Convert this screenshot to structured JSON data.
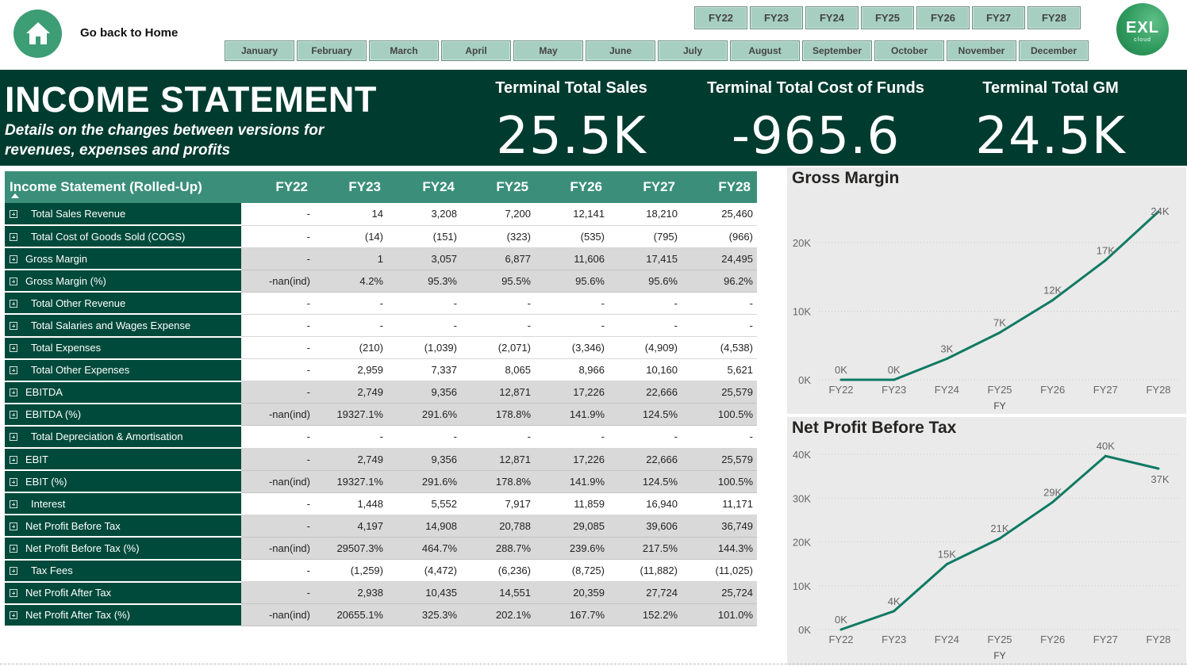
{
  "nav": {
    "home_label": "Go back to Home",
    "fiscal_years": [
      "FY22",
      "FY23",
      "FY24",
      "FY25",
      "FY26",
      "FY27",
      "FY28"
    ],
    "months": [
      "January",
      "February",
      "March",
      "April",
      "May",
      "June",
      "July",
      "August",
      "September",
      "October",
      "November",
      "December"
    ],
    "logo": {
      "main": "EXL",
      "sub": "cloud"
    }
  },
  "header": {
    "title": "INCOME STATEMENT",
    "subtitle": "Details on the changes between versions for revenues, expenses and profits",
    "kpis": [
      {
        "label": "Terminal Total Sales",
        "value": "25.5K"
      },
      {
        "label": "Terminal Total Cost of Funds",
        "value": "-965.6"
      },
      {
        "label": "Terminal Total GM",
        "value": "24.5K"
      }
    ]
  },
  "table": {
    "header": "Income Statement (Rolled-Up)",
    "columns": [
      "FY22",
      "FY23",
      "FY24",
      "FY25",
      "FY26",
      "FY27",
      "FY28"
    ],
    "rows": [
      {
        "label": "Total Sales Revenue",
        "kind": "sub",
        "values": [
          "-",
          "14",
          "3,208",
          "7,200",
          "12,141",
          "18,210",
          "25,460"
        ]
      },
      {
        "label": "Total Cost of Goods Sold (COGS)",
        "kind": "sub",
        "values": [
          "-",
          "(14)",
          "(151)",
          "(323)",
          "(535)",
          "(795)",
          "(966)"
        ]
      },
      {
        "label": "Gross Margin",
        "kind": "total",
        "values": [
          "-",
          "1",
          "3,057",
          "6,877",
          "11,606",
          "17,415",
          "24,495"
        ]
      },
      {
        "label": "Gross Margin (%)",
        "kind": "total",
        "values": [
          "-nan(ind)",
          "4.2%",
          "95.3%",
          "95.5%",
          "95.6%",
          "95.6%",
          "96.2%"
        ]
      },
      {
        "label": "Total Other Revenue",
        "kind": "sub",
        "values": [
          "-",
          "-",
          "-",
          "-",
          "-",
          "-",
          "-"
        ]
      },
      {
        "label": "Total Salaries and Wages Expense",
        "kind": "sub",
        "values": [
          "-",
          "-",
          "-",
          "-",
          "-",
          "-",
          "-"
        ]
      },
      {
        "label": "Total Expenses",
        "kind": "sub",
        "values": [
          "-",
          "(210)",
          "(1,039)",
          "(2,071)",
          "(3,346)",
          "(4,909)",
          "(4,538)"
        ]
      },
      {
        "label": "Total Other Expenses",
        "kind": "sub",
        "values": [
          "-",
          "2,959",
          "7,337",
          "8,065",
          "8,966",
          "10,160",
          "5,621"
        ]
      },
      {
        "label": "EBITDA",
        "kind": "total",
        "values": [
          "-",
          "2,749",
          "9,356",
          "12,871",
          "17,226",
          "22,666",
          "25,579"
        ]
      },
      {
        "label": "EBITDA (%)",
        "kind": "total",
        "values": [
          "-nan(ind)",
          "19327.1%",
          "291.6%",
          "178.8%",
          "141.9%",
          "124.5%",
          "100.5%"
        ]
      },
      {
        "label": "Total Depreciation & Amortisation",
        "kind": "sub",
        "values": [
          "-",
          "-",
          "-",
          "-",
          "-",
          "-",
          "-"
        ]
      },
      {
        "label": "EBIT",
        "kind": "total",
        "values": [
          "-",
          "2,749",
          "9,356",
          "12,871",
          "17,226",
          "22,666",
          "25,579"
        ]
      },
      {
        "label": "EBIT (%)",
        "kind": "total",
        "values": [
          "-nan(ind)",
          "19327.1%",
          "291.6%",
          "178.8%",
          "141.9%",
          "124.5%",
          "100.5%"
        ]
      },
      {
        "label": "Interest",
        "kind": "sub",
        "values": [
          "-",
          "1,448",
          "5,552",
          "7,917",
          "11,859",
          "16,940",
          "11,171"
        ]
      },
      {
        "label": "Net Profit Before Tax",
        "kind": "total",
        "values": [
          "-",
          "4,197",
          "14,908",
          "20,788",
          "29,085",
          "39,606",
          "36,749"
        ]
      },
      {
        "label": "Net Profit Before Tax (%)",
        "kind": "total",
        "values": [
          "-nan(ind)",
          "29507.3%",
          "464.7%",
          "288.7%",
          "239.6%",
          "217.5%",
          "144.3%"
        ]
      },
      {
        "label": "Tax Fees",
        "kind": "sub",
        "values": [
          "-",
          "(1,259)",
          "(4,472)",
          "(6,236)",
          "(8,725)",
          "(11,882)",
          "(11,025)"
        ]
      },
      {
        "label": "Net Profit After Tax",
        "kind": "total",
        "values": [
          "-",
          "2,938",
          "10,435",
          "14,551",
          "20,359",
          "27,724",
          "25,724"
        ]
      },
      {
        "label": "Net Profit After Tax (%)",
        "kind": "total",
        "values": [
          "-nan(ind)",
          "20655.1%",
          "325.3%",
          "202.1%",
          "167.7%",
          "152.2%",
          "101.0%"
        ]
      }
    ]
  },
  "chart_data": [
    {
      "type": "line",
      "title": "Gross Margin",
      "xlabel": "FY",
      "ylabel": "",
      "x": [
        "FY22",
        "FY23",
        "FY24",
        "FY25",
        "FY26",
        "FY27",
        "FY28"
      ],
      "series": [
        {
          "values": [
            0,
            1,
            3057,
            6877,
            11606,
            17415,
            24495
          ]
        }
      ],
      "data_labels": [
        "0K",
        "0K",
        "3K",
        "7K",
        "12K",
        "17K",
        "24K"
      ],
      "ylim": [
        0,
        24495
      ],
      "yticks": [
        0,
        10000,
        20000
      ],
      "ytick_labels": [
        "0K",
        "10K",
        "20K"
      ],
      "grid": true,
      "color": "#0f7a63"
    },
    {
      "type": "line",
      "title": "Net Profit Before Tax",
      "xlabel": "FY",
      "ylabel": "",
      "x": [
        "FY22",
        "FY23",
        "FY24",
        "FY25",
        "FY26",
        "FY27",
        "FY28"
      ],
      "series": [
        {
          "values": [
            0,
            4197,
            14908,
            20788,
            29085,
            39606,
            36749
          ]
        }
      ],
      "data_labels": [
        "0K",
        "4K",
        "15K",
        "21K",
        "29K",
        "40K",
        "37K"
      ],
      "ylim": [
        0,
        40000
      ],
      "yticks": [
        0,
        10000,
        20000,
        30000,
        40000
      ],
      "ytick_labels": [
        "0K",
        "10K",
        "20K",
        "30K",
        "40K"
      ],
      "grid": true,
      "color": "#0f7a63"
    }
  ]
}
